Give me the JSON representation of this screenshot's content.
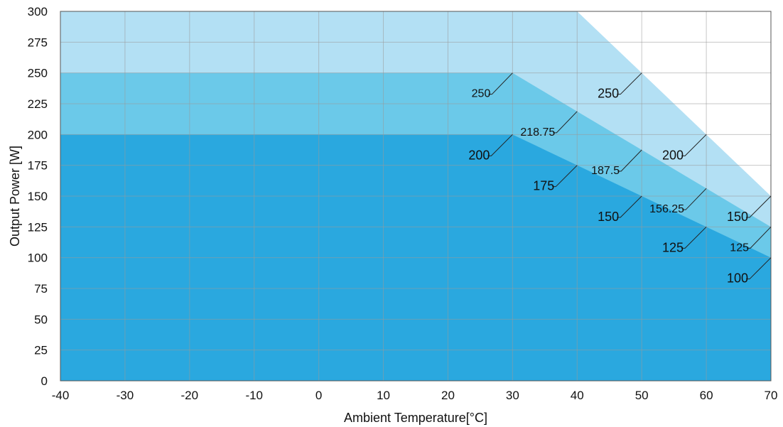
{
  "chart_data": {
    "type": "area",
    "title": "",
    "xlabel": "Ambient Temperature[°C]",
    "ylabel": "Output Power [W]",
    "xlim": [
      -40,
      70
    ],
    "ylim": [
      0,
      300
    ],
    "x_ticks": [
      -40,
      -30,
      -20,
      -10,
      0,
      10,
      20,
      30,
      40,
      50,
      60,
      70
    ],
    "y_ticks": [
      0,
      25,
      50,
      75,
      100,
      125,
      150,
      175,
      200,
      225,
      250,
      275,
      300
    ],
    "grid": true,
    "legend": "none",
    "series": [
      {
        "color": "#b3e0f4",
        "points": [
          [
            -40,
            300
          ],
          [
            40,
            300
          ],
          [
            50,
            250
          ],
          [
            60,
            200
          ],
          [
            70,
            150
          ]
        ]
      },
      {
        "color": "#6bc9e9",
        "points": [
          [
            -40,
            250
          ],
          [
            30,
            250
          ],
          [
            40,
            218.75
          ],
          [
            50,
            187.5
          ],
          [
            60,
            156.25
          ],
          [
            70,
            125
          ]
        ]
      },
      {
        "color": "#2aa8df",
        "points": [
          [
            -40,
            200
          ],
          [
            30,
            200
          ],
          [
            40,
            175
          ],
          [
            50,
            150
          ],
          [
            60,
            125
          ],
          [
            70,
            100
          ]
        ]
      }
    ],
    "annotations": [
      {
        "text": "250",
        "x": 30,
        "y": 250,
        "size": "small"
      },
      {
        "text": "200",
        "x": 30,
        "y": 200,
        "size": "large"
      },
      {
        "text": "218.75",
        "x": 40,
        "y": 218.75,
        "size": "small"
      },
      {
        "text": "175",
        "x": 40,
        "y": 175,
        "size": "large"
      },
      {
        "text": "250",
        "x": 50,
        "y": 250,
        "size": "large"
      },
      {
        "text": "187.5",
        "x": 50,
        "y": 187.5,
        "size": "small"
      },
      {
        "text": "150",
        "x": 50,
        "y": 150,
        "size": "large"
      },
      {
        "text": "200",
        "x": 60,
        "y": 200,
        "size": "large"
      },
      {
        "text": "156.25",
        "x": 60,
        "y": 156.25,
        "size": "small"
      },
      {
        "text": "125",
        "x": 60,
        "y": 125,
        "size": "large"
      },
      {
        "text": "150",
        "x": 70,
        "y": 150,
        "size": "large"
      },
      {
        "text": "125",
        "x": 70,
        "y": 125,
        "size": "small"
      },
      {
        "text": "100",
        "x": 70,
        "y": 100,
        "size": "large"
      }
    ]
  }
}
